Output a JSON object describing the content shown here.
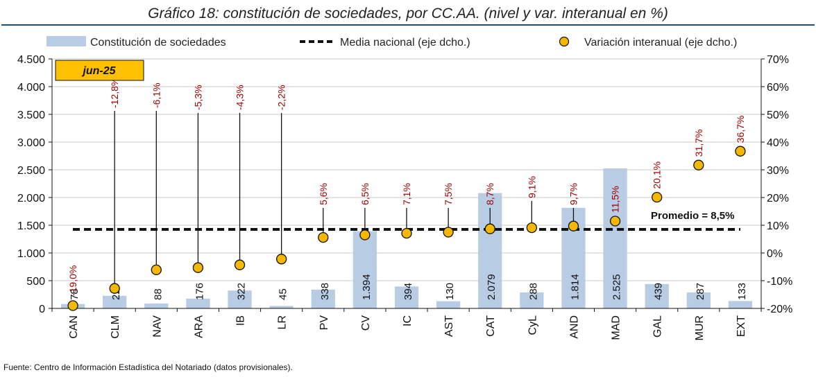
{
  "chart_data": {
    "type": "bar",
    "title": "Gráfico 18: constitución de sociedades, por CC.AA. (nivel y var. interanual en %)",
    "period_badge": "jun-25",
    "categories": [
      "CAN",
      "CLM",
      "NAV",
      "ARA",
      "IB",
      "LR",
      "PV",
      "CV",
      "IC",
      "AST",
      "CAT",
      "CyL",
      "AND",
      "MAD",
      "GAL",
      "MUR",
      "EXT"
    ],
    "series": [
      {
        "name": "Constitución de sociedades",
        "axis": "left",
        "kind": "bar",
        "values": [
          78,
          227,
          88,
          176,
          322,
          45,
          338,
          1394,
          394,
          130,
          2079,
          288,
          1814,
          2525,
          439,
          287,
          133
        ],
        "labels": [
          "78",
          "227",
          "88",
          "176",
          "322",
          "45",
          "338",
          "1.394",
          "394",
          "130",
          "2.079",
          "288",
          "1.814",
          "2.525",
          "439",
          "287",
          "133"
        ]
      },
      {
        "name": "Media nacional (eje dcho.)",
        "axis": "right",
        "kind": "dashed-line",
        "value": 8.5
      },
      {
        "name": "Variación interanual (eje dcho.)",
        "axis": "right",
        "kind": "scatter",
        "values": [
          -19.0,
          -12.8,
          -6.1,
          -5.3,
          -4.3,
          -2.2,
          5.6,
          6.5,
          7.1,
          7.5,
          8.7,
          9.1,
          9.7,
          11.5,
          20.1,
          31.7,
          36.7
        ],
        "labels": [
          "-19,0%",
          "-12,8%",
          "-6,1%",
          "-5,3%",
          "-4,3%",
          "-2,2%",
          "5,6%",
          "6,5%",
          "7,1%",
          "7,5%",
          "8,7%",
          "9,1%",
          "9,7%",
          "11,5%",
          "20,1%",
          "31,7%",
          "36,7%"
        ]
      }
    ],
    "left_axis": {
      "ylim": [
        0,
        4500
      ],
      "ticks": [
        0,
        500,
        1000,
        1500,
        2000,
        2500,
        3000,
        3500,
        4000,
        4500
      ],
      "tick_labels": [
        "0",
        "500",
        "1.000",
        "1.500",
        "2.000",
        "2.500",
        "3.000",
        "3.500",
        "4.000",
        "4.500"
      ]
    },
    "right_axis": {
      "ylim": [
        -20,
        70
      ],
      "ticks": [
        -20,
        -10,
        0,
        10,
        20,
        30,
        40,
        50,
        60,
        70
      ],
      "tick_labels": [
        "-20%",
        "-10%",
        "0%",
        "10%",
        "20%",
        "30%",
        "40%",
        "50%",
        "60%",
        "70%"
      ]
    },
    "annotation": "Promedio = 8,5%",
    "grid": true,
    "legend_position": "top"
  },
  "colors": {
    "bar": "#b8cce4",
    "marker": "#f5b800",
    "pct_label": "#a00000",
    "badge": "#ffc000",
    "title_rule": "#1f4e79"
  },
  "source": "Fuente: Centro de Información Estadística del Notariado (datos provisionales)."
}
